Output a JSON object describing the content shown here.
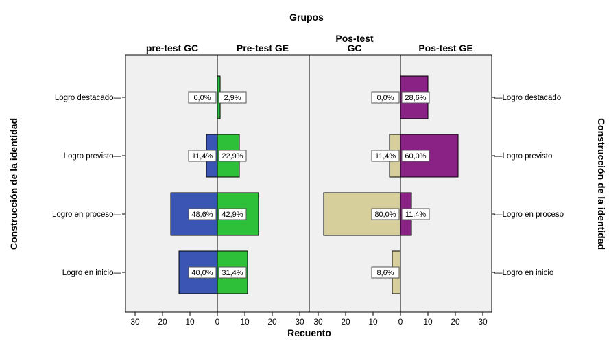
{
  "chart_data": {
    "type": "bar",
    "title": "Grupos",
    "xlabel": "Recuento",
    "ylabel": "Construcción de la identidad",
    "ylabel_right": "Construcción de la identidad",
    "categories": [
      "Logro destacado",
      "Logro previsto",
      "Logro en proceso",
      "Logro en inicio"
    ],
    "xlim": [
      0,
      30
    ],
    "xticks": [
      "30",
      "20",
      "10",
      "0",
      "10",
      "20",
      "30"
    ],
    "panels": [
      {
        "left_group": "pre-test GC",
        "right_group": "Pre-test GE",
        "series": [
          {
            "name": "pre-test GC",
            "color": "#3a55b4",
            "side": "left",
            "values": [
              0,
              4,
              17,
              14
            ],
            "labels": [
              "0,0%",
              "11,4%",
              "48,6%",
              "40,0%"
            ]
          },
          {
            "name": "Pre-test GE",
            "color": "#2fc03a",
            "side": "right",
            "values": [
              1,
              8,
              15,
              11
            ],
            "labels": [
              "2,9%",
              "22,9%",
              "42,9%",
              "31,4%"
            ]
          }
        ]
      },
      {
        "left_group": "Pos-test\nGC",
        "right_group": "Pos-test GE",
        "series": [
          {
            "name": "Pos-test GC",
            "color": "#d6cf9b",
            "side": "left",
            "values": [
              0,
              4,
              28,
              3
            ],
            "labels": [
              "0,0%",
              "11,4%",
              "80,0%",
              "8,6%"
            ]
          },
          {
            "name": "Pos-test GE",
            "color": "#8a2286",
            "side": "right",
            "values": [
              10,
              21,
              4,
              0
            ],
            "labels": [
              "28,6%",
              "60,0%",
              "11,4%",
              ""
            ]
          }
        ]
      }
    ],
    "grid": false
  }
}
